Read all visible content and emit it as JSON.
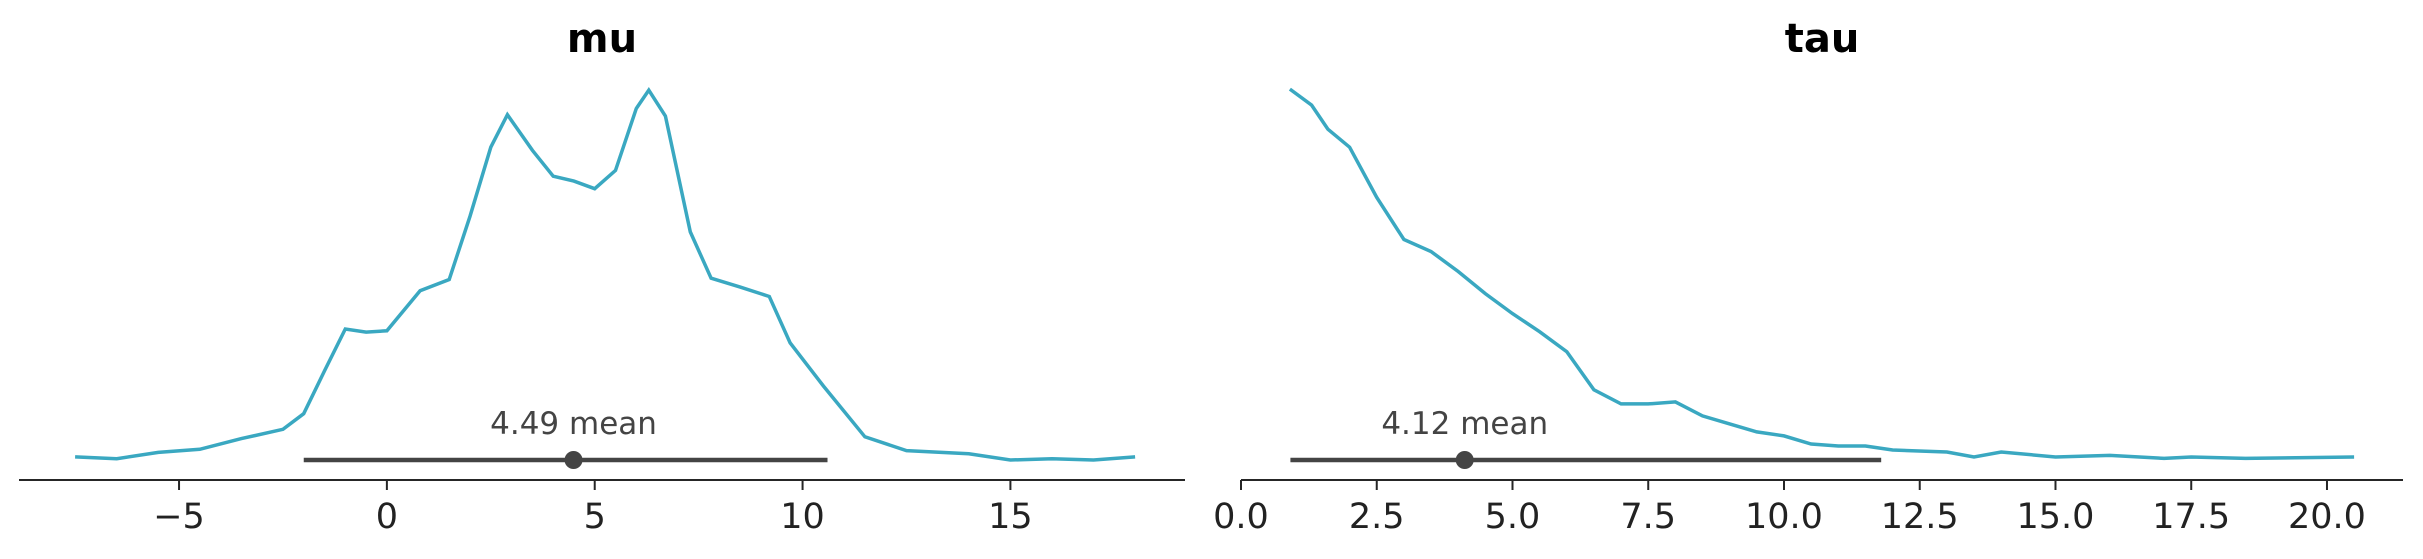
{
  "chart_data": [
    {
      "type": "kde",
      "title": "mu",
      "color": "#3aa8c1",
      "interval_color": "#444444",
      "x": [
        -7.5,
        -6.5,
        -5.5,
        -4.5,
        -3.5,
        -2.5,
        -2.0,
        -1.5,
        -1.0,
        -0.5,
        0.0,
        0.8,
        1.5,
        2.0,
        2.5,
        2.9,
        3.5,
        4.0,
        4.5,
        5.0,
        5.5,
        6.0,
        6.3,
        6.7,
        7.3,
        7.8,
        8.5,
        9.2,
        9.7,
        10.5,
        11.5,
        12.5,
        14.0,
        15.0,
        16.0,
        17.0,
        18.0
      ],
      "values": [
        0.0007,
        0.0003,
        0.0017,
        0.0024,
        0.0048,
        0.0069,
        0.0104,
        0.02,
        0.0294,
        0.0287,
        0.029,
        0.038,
        0.0405,
        0.0547,
        0.0702,
        0.0775,
        0.0695,
        0.0637,
        0.0626,
        0.0609,
        0.065,
        0.0789,
        0.083,
        0.0772,
        0.0512,
        0.0408,
        0.0388,
        0.0367,
        0.0263,
        0.0166,
        0.0052,
        0.0021,
        0.0014,
        0.0,
        0.0003,
        0.0,
        0.0007
      ],
      "xlim": [
        -8.85,
        19.2
      ],
      "ylim": [
        0,
        0.09
      ],
      "xticks": [
        {
          "value": -5,
          "label": "−5"
        },
        0,
        5,
        10,
        15
      ],
      "hdi": [
        -2.0,
        10.6
      ],
      "mean": 4.49,
      "mean_label": "4.49 mean"
    },
    {
      "type": "kde",
      "title": "tau",
      "color": "#3aa8c1",
      "interval_color": "#444444",
      "x": [
        0.9,
        1.3,
        1.6,
        2.0,
        2.5,
        3.0,
        3.5,
        4.0,
        4.5,
        5.0,
        5.5,
        6.0,
        6.5,
        7.0,
        7.5,
        8.0,
        8.5,
        9.0,
        9.5,
        10.0,
        10.5,
        11.0,
        11.5,
        12.0,
        13.0,
        13.5,
        14.0,
        15.0,
        16.0,
        17.0,
        17.5,
        18.5,
        20.5
      ],
      "values": [
        0.185,
        0.177,
        0.165,
        0.156,
        0.131,
        0.11,
        0.104,
        0.094,
        0.083,
        0.073,
        0.064,
        0.054,
        0.035,
        0.028,
        0.028,
        0.029,
        0.022,
        0.018,
        0.014,
        0.012,
        0.008,
        0.007,
        0.007,
        0.005,
        0.004,
        0.0015,
        0.004,
        0.0015,
        0.0023,
        0.0008,
        0.0015,
        0.0008,
        0.0015
      ],
      "xlim": [
        0,
        21.4
      ],
      "ylim": [
        0,
        0.2
      ],
      "xticks": [
        {
          "value": 0,
          "label": "0.0"
        },
        {
          "value": 2.5,
          "label": "2.5"
        },
        {
          "value": 5,
          "label": "5.0"
        },
        {
          "value": 7.5,
          "label": "7.5"
        },
        {
          "value": 10,
          "label": "10.0"
        },
        {
          "value": 12.5,
          "label": "12.5"
        },
        {
          "value": 15,
          "label": "15.0"
        },
        {
          "value": 17.5,
          "label": "17.5"
        },
        {
          "value": 20,
          "label": "20.0"
        }
      ],
      "hdi": [
        0.91,
        11.79
      ],
      "mean": 4.12,
      "mean_label": "4.12 mean"
    }
  ]
}
